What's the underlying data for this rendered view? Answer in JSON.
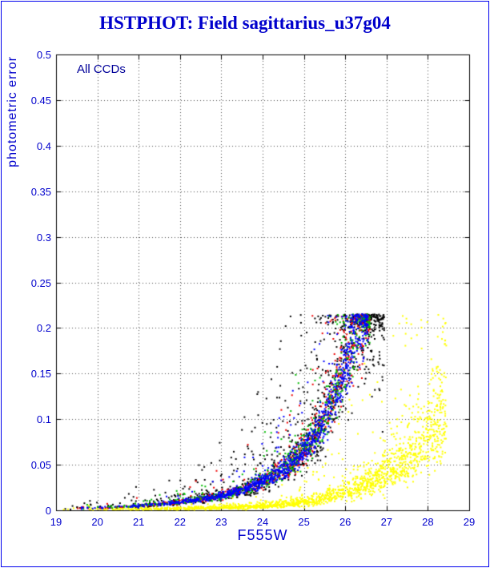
{
  "page": {
    "title": "HSTPHOT: Field sagittarius_u37g04",
    "title_color": "#0000cc",
    "frame_color": "#0000ee"
  },
  "chart_data": {
    "type": "scatter",
    "title": "HSTPHOT: Field sagittarius_u37g04",
    "annotation": "All CCDs",
    "xlabel": "F555W",
    "ylabel": "photometric error",
    "xlim": [
      19,
      29
    ],
    "ylim": [
      0,
      0.5
    ],
    "x_ticks": [
      19,
      20,
      21,
      22,
      23,
      24,
      25,
      26,
      27,
      28,
      29
    ],
    "x_tick_labels": [
      "19",
      "20",
      "21",
      "22",
      "23",
      "24",
      "25",
      "26",
      "27",
      "28",
      "29"
    ],
    "y_ticks": [
      0,
      0.05,
      0.1,
      0.15,
      0.2,
      0.25,
      0.3,
      0.35,
      0.4,
      0.45,
      0.5
    ],
    "y_tick_labels": [
      "0",
      "0.05",
      "0.1",
      "0.15",
      "0.2",
      "0.25",
      "0.3",
      "0.35",
      "0.4",
      "0.45",
      "0.5"
    ],
    "grid": "dotted",
    "legend": "none",
    "error_cap": 0.215,
    "description": "Photometric error vs F555W magnitude for all CCDs; main sequence of black/red/green/blue chip points rising to the 0.215 error cap near mag 26.3-26.6, plus a fainter yellow-chip sequence reaching error ~0.1 near mag 28.4.",
    "series": [
      {
        "name": "ccd-black",
        "color": "#000000",
        "count": 1000,
        "seed": 11,
        "mag_range": [
          19.0,
          26.95
        ],
        "faint_bias": 0.42,
        "scatter_dex": 0.1,
        "outlier_frac": 0.3,
        "outlier_dex": 0.55,
        "ridge": [
          [
            19,
            0.0018
          ],
          [
            20,
            0.0028
          ],
          [
            21,
            0.005
          ],
          [
            22,
            0.009
          ],
          [
            23,
            0.016
          ],
          [
            24,
            0.031
          ],
          [
            25,
            0.065
          ],
          [
            25.5,
            0.1
          ],
          [
            26,
            0.16
          ],
          [
            26.3,
            0.205
          ],
          [
            26.95,
            0.215
          ]
        ]
      },
      {
        "name": "ccd-yellow",
        "color": "#ffff00",
        "count": 1700,
        "seed": 55,
        "mag_range": [
          19.0,
          28.45
        ],
        "faint_bias": 0.45,
        "scatter_dex": 0.13,
        "outlier_frac": 0.07,
        "outlier_dex": 0.75,
        "ridge": [
          [
            19,
            0.0008
          ],
          [
            21,
            0.0012
          ],
          [
            23,
            0.0028
          ],
          [
            24,
            0.0045
          ],
          [
            25,
            0.0095
          ],
          [
            26,
            0.02
          ],
          [
            27,
            0.042
          ],
          [
            27.6,
            0.062
          ],
          [
            28,
            0.085
          ],
          [
            28.45,
            0.108
          ]
        ]
      },
      {
        "name": "ccd-red",
        "color": "#ee0000",
        "count": 650,
        "seed": 22,
        "mag_range": [
          19.0,
          26.6
        ],
        "faint_bias": 0.4,
        "scatter_dex": 0.06,
        "outlier_frac": 0.12,
        "outlier_dex": 0.4,
        "ridge": [
          [
            19,
            0.0018
          ],
          [
            20,
            0.0028
          ],
          [
            21,
            0.005
          ],
          [
            22,
            0.009
          ],
          [
            23,
            0.016
          ],
          [
            24,
            0.031
          ],
          [
            25,
            0.065
          ],
          [
            25.5,
            0.1
          ],
          [
            26,
            0.16
          ],
          [
            26.35,
            0.21
          ],
          [
            26.6,
            0.215
          ]
        ]
      },
      {
        "name": "ccd-green",
        "color": "#00bb00",
        "count": 650,
        "seed": 33,
        "mag_range": [
          19.0,
          26.6
        ],
        "faint_bias": 0.4,
        "scatter_dex": 0.06,
        "outlier_frac": 0.12,
        "outlier_dex": 0.4,
        "ridge": [
          [
            19,
            0.0018
          ],
          [
            20,
            0.0028
          ],
          [
            21,
            0.005
          ],
          [
            22,
            0.009
          ],
          [
            23,
            0.016
          ],
          [
            24,
            0.031
          ],
          [
            25,
            0.065
          ],
          [
            25.5,
            0.1
          ],
          [
            26,
            0.16
          ],
          [
            26.35,
            0.21
          ],
          [
            26.6,
            0.215
          ]
        ]
      },
      {
        "name": "ccd-blue",
        "color": "#0000ff",
        "count": 1100,
        "seed": 44,
        "mag_range": [
          19.0,
          26.55
        ],
        "faint_bias": 0.38,
        "scatter_dex": 0.05,
        "outlier_frac": 0.1,
        "outlier_dex": 0.35,
        "ridge": [
          [
            19,
            0.0018
          ],
          [
            20,
            0.0028
          ],
          [
            21,
            0.005
          ],
          [
            22,
            0.009
          ],
          [
            23,
            0.016
          ],
          [
            24,
            0.031
          ],
          [
            25,
            0.065
          ],
          [
            25.5,
            0.1
          ],
          [
            26,
            0.16
          ],
          [
            26.3,
            0.205
          ],
          [
            26.55,
            0.215
          ]
        ]
      }
    ]
  }
}
